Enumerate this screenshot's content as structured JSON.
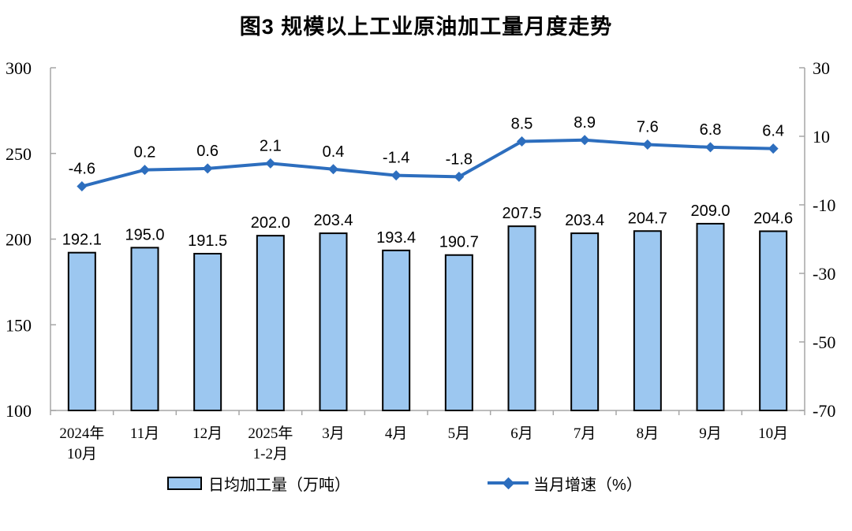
{
  "chart_data": {
    "type": "combo-bar-line",
    "title": "图3 规模以上工业原油加工量月度走势",
    "categories": [
      "2024年10月",
      "11月",
      "12月",
      "2025年1-2月",
      "3月",
      "4月",
      "5月",
      "6月",
      "7月",
      "8月",
      "9月",
      "10月"
    ],
    "category_labels": [
      [
        "2024年",
        "10月"
      ],
      [
        "11月"
      ],
      [
        "12月"
      ],
      [
        "2025年",
        "1-2月"
      ],
      [
        "3月"
      ],
      [
        "4月"
      ],
      [
        "5月"
      ],
      [
        "6月"
      ],
      [
        "7月"
      ],
      [
        "8月"
      ],
      [
        "9月"
      ],
      [
        "10月"
      ]
    ],
    "series": [
      {
        "name": "日均加工量（万吨）",
        "type": "bar",
        "axis": "left",
        "values": [
          192.1,
          195.0,
          191.5,
          202.0,
          203.4,
          193.4,
          190.7,
          207.5,
          203.4,
          204.7,
          209.0,
          204.6
        ],
        "fill": "#9CC7F0",
        "stroke": "#000000"
      },
      {
        "name": "当月增速（%）",
        "type": "line",
        "axis": "right",
        "values": [
          -4.6,
          0.2,
          0.6,
          2.1,
          0.4,
          -1.4,
          -1.8,
          8.5,
          8.9,
          7.6,
          6.8,
          6.4
        ],
        "color": "#2D6EBE",
        "marker": "diamond"
      }
    ],
    "left_axis": {
      "min": 100,
      "max": 300,
      "tick_labels": [
        "300",
        "250",
        "200",
        "150",
        "100"
      ]
    },
    "right_axis": {
      "min": -70,
      "max": 30,
      "tick_labels": [
        "30",
        "10",
        "-10",
        "-30",
        "-50",
        "-70"
      ]
    },
    "axis_color": "#A6A6A6",
    "grid": false,
    "legend_position": "bottom"
  }
}
